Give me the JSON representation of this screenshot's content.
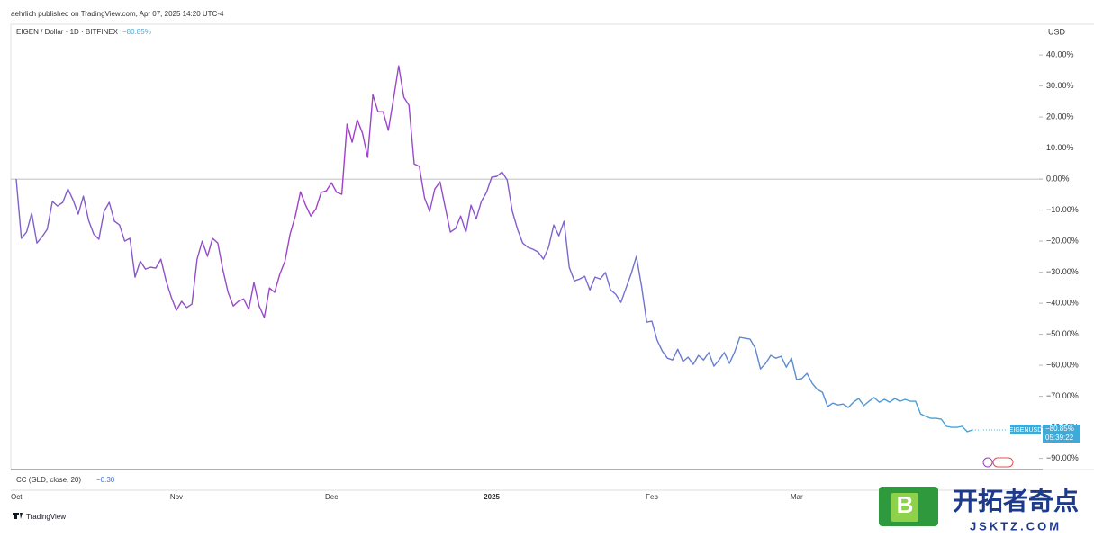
{
  "header": {
    "published": "aehrlich published on TradingView.com, Apr 07, 2025 14:20 UTC-4",
    "symbol": "EIGEN / Dollar · 1D · BITFINEX",
    "change": "−80.85%",
    "currency": "USD"
  },
  "indicator": {
    "name": "CC (GLD, close, 20)",
    "value": "−0.30"
  },
  "footer": {
    "brand": "TradingView"
  },
  "watermark": {
    "logo": "B",
    "name": "开拓者奇点",
    "site": "JSKTZ.COM"
  },
  "chart_data": {
    "type": "line",
    "categories": [
      null,
      null,
      null,
      null,
      null,
      null,
      null,
      null,
      null,
      null,
      null,
      null,
      null,
      null,
      null,
      null,
      null,
      null,
      null,
      null,
      null,
      null,
      null,
      null,
      null,
      null,
      null,
      null,
      null,
      null,
      null,
      "Nov",
      null,
      null,
      null,
      null,
      null,
      null,
      null,
      null,
      null,
      null,
      null,
      null,
      null,
      null,
      null,
      null,
      null,
      null,
      null,
      null,
      null,
      null,
      null,
      null,
      null,
      null,
      null,
      null,
      null,
      "Dec",
      null,
      null,
      null,
      null,
      null,
      null,
      null,
      null,
      null,
      null,
      null,
      null,
      null,
      null,
      null,
      null,
      null,
      null,
      null,
      null,
      null,
      null,
      null,
      null,
      null,
      null,
      null,
      null,
      null,
      null,
      "2025",
      null,
      null,
      null,
      null,
      null,
      null,
      null,
      null,
      null,
      null,
      null,
      null,
      null,
      null,
      null,
      null,
      null,
      null,
      null,
      null,
      null,
      null,
      null,
      null,
      null,
      null,
      null,
      null,
      null,
      null,
      "Feb",
      null,
      null,
      null,
      null,
      null,
      null,
      null,
      null,
      null,
      null,
      null,
      null,
      null,
      null,
      null,
      null,
      null,
      null,
      null,
      null,
      null,
      null,
      null,
      null,
      null,
      null,
      null,
      "Mar",
      null,
      null,
      null,
      null,
      null,
      null,
      null,
      null,
      null,
      null,
      null,
      null,
      null,
      null,
      null,
      null,
      null,
      null,
      null,
      null,
      null,
      null,
      null,
      null,
      null,
      null,
      null,
      null,
      null,
      null,
      null,
      null,
      null,
      null
    ],
    "first_label": "Oct",
    "series": [
      {
        "name": "EIGENUSD",
        "colors": [
          "#7e63c8",
          "#a23ec9",
          "#6c78cf",
          "#3fa9d8"
        ],
        "values": [
          0,
          -19.1,
          -17.1,
          -11.0,
          -20.6,
          -18.6,
          -16.2,
          -7.2,
          -8.7,
          -7.5,
          -3.2,
          -6.7,
          -11.3,
          -5.5,
          -13.3,
          -17.7,
          -19.4,
          -10.4,
          -7.5,
          -13.6,
          -14.8,
          -20.0,
          -19.1,
          -31.6,
          -26.4,
          -29.0,
          -28.4,
          -28.7,
          -25.8,
          -32.8,
          -38.0,
          -42.3,
          -39.4,
          -41.4,
          -40.3,
          -25.8,
          -20.0,
          -24.9,
          -19.1,
          -20.6,
          -29.3,
          -36.5,
          -40.9,
          -39.4,
          -38.6,
          -42.0,
          -33.3,
          -40.9,
          -44.6,
          -35.1,
          -36.5,
          -30.7,
          -26.4,
          -17.7,
          -11.9,
          -4.1,
          -8.4,
          -11.9,
          -9.6,
          -4.3,
          -3.8,
          -1.2,
          -4.3,
          -4.9,
          17.7,
          11.9,
          19.1,
          14.8,
          7.0,
          27.2,
          21.7,
          21.7,
          15.7,
          25.8,
          36.5,
          26.4,
          23.8,
          4.9,
          4.1,
          -6.1,
          -10.4,
          -3.2,
          -0.9,
          -9.0,
          -17.1,
          -15.9,
          -11.9,
          -17.1,
          -8.4,
          -12.8,
          -7.2,
          -4.3,
          0.6,
          0.9,
          2.3,
          -0.3,
          -10.4,
          -16.2,
          -20.6,
          -22.0,
          -22.6,
          -23.5,
          -25.8,
          -22.0,
          -14.8,
          -18.3,
          -13.6,
          -28.4,
          -32.8,
          -32.2,
          -31.3,
          -35.7,
          -31.6,
          -32.2,
          -30.1,
          -35.7,
          -37.1,
          -39.7,
          -35.1,
          -30.4,
          -24.9,
          -34.5,
          -46.1,
          -45.8,
          -51.9,
          -55.4,
          -57.7,
          -58.3,
          -54.8,
          -58.8,
          -57.4,
          -59.7,
          -56.8,
          -58.3,
          -55.9,
          -60.3,
          -58.3,
          -55.9,
          -59.4,
          -55.7,
          -51.0,
          -51.3,
          -51.6,
          -54.5,
          -61.2,
          -59.4,
          -56.8,
          -57.7,
          -57.1,
          -60.6,
          -57.7,
          -64.6,
          -64.3,
          -62.6,
          -65.8,
          -67.8,
          -68.7,
          -73.3,
          -72.2,
          -72.8,
          -72.5,
          -73.6,
          -71.9,
          -70.7,
          -73.0,
          -71.6,
          -70.4,
          -71.9,
          -71.0,
          -71.9,
          -70.7,
          -71.6,
          -71.0,
          -71.6,
          -71.6,
          -75.7,
          -76.5,
          -77.1,
          -77.1,
          -77.4,
          -79.7,
          -80.0,
          -80.0,
          -79.7,
          -81.4,
          -80.85
        ]
      }
    ],
    "last_value_label": "−80.85%",
    "countdown": "05:39:22",
    "ylim": [
      -93.6,
      49.6
    ],
    "yticks": [
      {
        "value": 40,
        "label": "40.00%"
      },
      {
        "value": 30,
        "label": "30.00%"
      },
      {
        "value": 20,
        "label": "20.00%"
      },
      {
        "value": 10,
        "label": "10.00%"
      },
      {
        "value": 0,
        "label": "0.00%"
      },
      {
        "value": -10,
        "label": "−10.00%"
      },
      {
        "value": -20,
        "label": "−20.00%"
      },
      {
        "value": -30,
        "label": "−30.00%"
      },
      {
        "value": -40,
        "label": "−40.00%"
      },
      {
        "value": -50,
        "label": "−50.00%"
      },
      {
        "value": -60,
        "label": "−60.00%"
      },
      {
        "value": -70,
        "label": "−70.00%"
      },
      {
        "value": -80,
        "label": "−80.00%"
      },
      {
        "value": -90,
        "label": "−90.00%"
      }
    ],
    "baseline": 0,
    "grid": false
  }
}
